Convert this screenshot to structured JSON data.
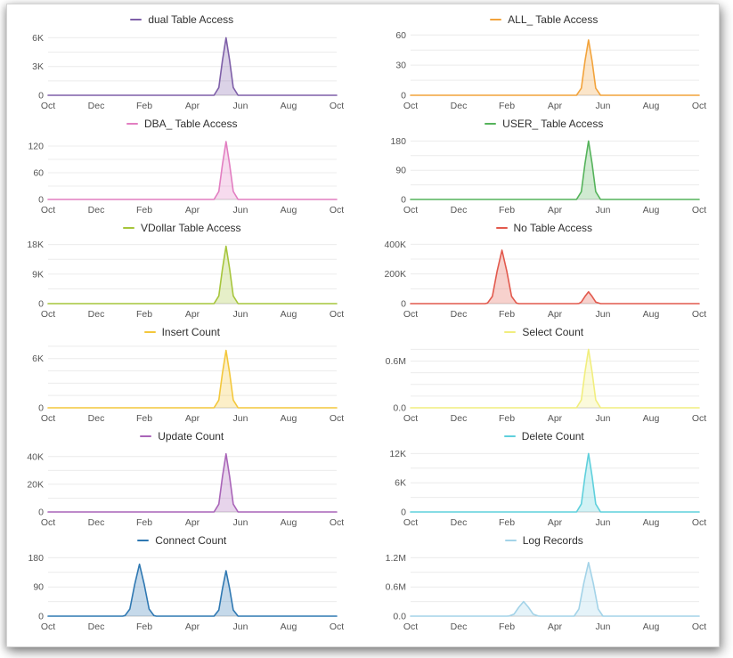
{
  "x_axis": {
    "labels": [
      "Oct",
      "Dec",
      "Feb",
      "Apr",
      "Jun",
      "Aug",
      "Oct"
    ],
    "positions": [
      0,
      2,
      4,
      6,
      8,
      10,
      12
    ],
    "range": [
      0,
      12
    ]
  },
  "chart_data": [
    {
      "type": "area",
      "title": "dual Table Access",
      "color": "#7e5fa8",
      "ymax": 6500,
      "grid_step": 1500,
      "ticks": [
        {
          "v": 0,
          "label": "0"
        },
        {
          "v": 3000,
          "label": "3K"
        },
        {
          "v": 6000,
          "label": "6K"
        }
      ],
      "points": [
        [
          0,
          0
        ],
        [
          6.9,
          0
        ],
        [
          7.1,
          810
        ],
        [
          7.25,
          3660
        ],
        [
          7.4,
          6000
        ],
        [
          7.55,
          3660
        ],
        [
          7.7,
          810
        ],
        [
          7.9,
          0
        ],
        [
          12,
          0
        ]
      ]
    },
    {
      "type": "area",
      "title": "ALL_ Table Access",
      "color": "#f2a33c",
      "ymax": 62,
      "grid_step": 15,
      "ticks": [
        {
          "v": 0,
          "label": "0"
        },
        {
          "v": 30,
          "label": "30"
        },
        {
          "v": 60,
          "label": "60"
        }
      ],
      "points": [
        [
          0,
          0
        ],
        [
          6.9,
          0
        ],
        [
          7.1,
          7
        ],
        [
          7.25,
          34
        ],
        [
          7.4,
          55
        ],
        [
          7.55,
          34
        ],
        [
          7.7,
          7
        ],
        [
          7.9,
          0
        ],
        [
          12,
          0
        ]
      ]
    },
    {
      "type": "area",
      "title": "DBA_ Table Access",
      "color": "#e27ec1",
      "ymax": 140,
      "grid_step": 30,
      "ticks": [
        {
          "v": 0,
          "label": "0"
        },
        {
          "v": 60,
          "label": "60"
        },
        {
          "v": 120,
          "label": "120"
        }
      ],
      "points": [
        [
          0,
          0
        ],
        [
          6.9,
          0
        ],
        [
          7.1,
          18
        ],
        [
          7.25,
          79
        ],
        [
          7.4,
          130
        ],
        [
          7.55,
          79
        ],
        [
          7.7,
          18
        ],
        [
          7.9,
          0
        ],
        [
          12,
          0
        ]
      ]
    },
    {
      "type": "area",
      "title": "USER_ Table Access",
      "color": "#55b35b",
      "ymax": 192,
      "grid_step": 45,
      "ticks": [
        {
          "v": 0,
          "label": "0"
        },
        {
          "v": 90,
          "label": "90"
        },
        {
          "v": 180,
          "label": "180"
        }
      ],
      "points": [
        [
          0,
          0
        ],
        [
          6.9,
          0
        ],
        [
          7.1,
          24
        ],
        [
          7.25,
          110
        ],
        [
          7.4,
          180
        ],
        [
          7.55,
          110
        ],
        [
          7.7,
          24
        ],
        [
          7.9,
          0
        ],
        [
          12,
          0
        ]
      ]
    },
    {
      "type": "area",
      "title": "VDollar Table Access",
      "color": "#a6c53b",
      "ymax": 19000,
      "grid_step": 4500,
      "ticks": [
        {
          "v": 0,
          "label": "0"
        },
        {
          "v": 9000,
          "label": "9K"
        },
        {
          "v": 18000,
          "label": "18K"
        }
      ],
      "points": [
        [
          0,
          0
        ],
        [
          6.9,
          0
        ],
        [
          7.1,
          2360
        ],
        [
          7.25,
          10680
        ],
        [
          7.4,
          17500
        ],
        [
          7.55,
          10680
        ],
        [
          7.7,
          2360
        ],
        [
          7.9,
          0
        ],
        [
          12,
          0
        ]
      ]
    },
    {
      "type": "area",
      "title": "No Table Access",
      "color": "#e2594d",
      "ymax": 420000,
      "grid_step": 100000,
      "ticks": [
        {
          "v": 0,
          "label": "0"
        },
        {
          "v": 200000,
          "label": "200K"
        },
        {
          "v": 400000,
          "label": "400K"
        }
      ],
      "points": [
        [
          0,
          0
        ],
        [
          3.1,
          0
        ],
        [
          3.2,
          4000
        ],
        [
          3.4,
          48600
        ],
        [
          3.6,
          219600
        ],
        [
          3.8,
          360000
        ],
        [
          4.0,
          219600
        ],
        [
          4.2,
          48600
        ],
        [
          4.4,
          4000
        ],
        [
          4.5,
          0
        ],
        [
          6.9,
          0
        ],
        [
          7.0,
          900
        ],
        [
          7.1,
          10800
        ],
        [
          7.25,
          48800
        ],
        [
          7.4,
          80000
        ],
        [
          7.55,
          48800
        ],
        [
          7.7,
          10800
        ],
        [
          7.9,
          0
        ],
        [
          12,
          0
        ]
      ]
    },
    {
      "type": "area",
      "title": "Insert Count",
      "color": "#f3c73b",
      "ymax": 7600,
      "grid_step": 1500,
      "ticks": [
        {
          "v": 0,
          "label": "0"
        },
        {
          "v": 6000,
          "label": "6K"
        }
      ],
      "points": [
        [
          0,
          0
        ],
        [
          6.9,
          0
        ],
        [
          7.1,
          945
        ],
        [
          7.25,
          4270
        ],
        [
          7.4,
          7000
        ],
        [
          7.55,
          4270
        ],
        [
          7.7,
          945
        ],
        [
          7.9,
          0
        ],
        [
          12,
          0
        ]
      ]
    },
    {
      "type": "area",
      "title": "Select Count",
      "color": "#f1ee7e",
      "ymax": 800000,
      "grid_step": 150000,
      "ticks": [
        {
          "v": 0,
          "label": "0.0"
        },
        {
          "v": 600000,
          "label": "0.6M"
        }
      ],
      "points": [
        [
          0,
          0
        ],
        [
          6.9,
          0
        ],
        [
          7.1,
          101000
        ],
        [
          7.25,
          458000
        ],
        [
          7.4,
          750000
        ],
        [
          7.55,
          458000
        ],
        [
          7.7,
          101000
        ],
        [
          7.9,
          0
        ],
        [
          12,
          0
        ]
      ]
    },
    {
      "type": "area",
      "title": "Update Count",
      "color": "#a964b8",
      "ymax": 45000,
      "grid_step": 10000,
      "ticks": [
        {
          "v": 0,
          "label": "0"
        },
        {
          "v": 20000,
          "label": "20K"
        },
        {
          "v": 40000,
          "label": "40K"
        }
      ],
      "points": [
        [
          0,
          0
        ],
        [
          6.9,
          0
        ],
        [
          7.1,
          5670
        ],
        [
          7.25,
          25620
        ],
        [
          7.4,
          42000
        ],
        [
          7.55,
          25620
        ],
        [
          7.7,
          5670
        ],
        [
          7.9,
          0
        ],
        [
          12,
          0
        ]
      ]
    },
    {
      "type": "area",
      "title": "Delete Count",
      "color": "#5fd0dc",
      "ymax": 12800,
      "grid_step": 3000,
      "ticks": [
        {
          "v": 0,
          "label": "0"
        },
        {
          "v": 6000,
          "label": "6K"
        },
        {
          "v": 12000,
          "label": "12K"
        }
      ],
      "points": [
        [
          0,
          0
        ],
        [
          6.9,
          0
        ],
        [
          7.1,
          1620
        ],
        [
          7.25,
          7320
        ],
        [
          7.4,
          12000
        ],
        [
          7.55,
          7320
        ],
        [
          7.7,
          1620
        ],
        [
          7.9,
          0
        ],
        [
          12,
          0
        ]
      ]
    },
    {
      "type": "area",
      "title": "Connect Count",
      "color": "#2f78b2",
      "ymax": 192,
      "grid_step": 45,
      "ticks": [
        {
          "v": 0,
          "label": "0"
        },
        {
          "v": 90,
          "label": "90"
        },
        {
          "v": 180,
          "label": "180"
        }
      ],
      "points": [
        [
          0,
          0
        ],
        [
          3.1,
          0
        ],
        [
          3.2,
          2
        ],
        [
          3.4,
          22
        ],
        [
          3.6,
          97
        ],
        [
          3.8,
          160
        ],
        [
          4.0,
          97
        ],
        [
          4.2,
          22
        ],
        [
          4.4,
          2
        ],
        [
          4.5,
          0
        ],
        [
          6.9,
          0
        ],
        [
          7.1,
          19
        ],
        [
          7.25,
          85
        ],
        [
          7.4,
          140
        ],
        [
          7.55,
          85
        ],
        [
          7.7,
          19
        ],
        [
          7.9,
          0
        ],
        [
          12,
          0
        ]
      ]
    },
    {
      "type": "area",
      "title": "Log Records",
      "color": "#a3d3e8",
      "ymax": 1280000,
      "grid_step": 300000,
      "ticks": [
        {
          "v": 0,
          "label": "0.0"
        },
        {
          "v": 600000,
          "label": "0.6M"
        },
        {
          "v": 1200000,
          "label": "1.2M"
        }
      ],
      "points": [
        [
          0,
          0
        ],
        [
          4.0,
          0
        ],
        [
          4.1,
          3000
        ],
        [
          4.3,
          40500
        ],
        [
          4.5,
          182000
        ],
        [
          4.7,
          300000
        ],
        [
          4.9,
          182000
        ],
        [
          5.1,
          40500
        ],
        [
          5.3,
          3000
        ],
        [
          5.4,
          0
        ],
        [
          6.8,
          0
        ],
        [
          7.0,
          148000
        ],
        [
          7.2,
          671000
        ],
        [
          7.4,
          1100000
        ],
        [
          7.6,
          671000
        ],
        [
          7.8,
          148000
        ],
        [
          8.0,
          0
        ],
        [
          12,
          0
        ]
      ]
    }
  ]
}
